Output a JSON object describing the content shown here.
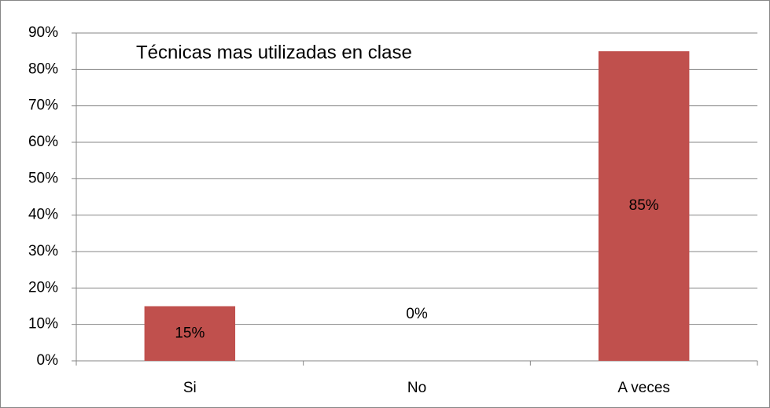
{
  "chart_data": {
    "type": "bar",
    "title": "Técnicas mas utilizadas en clase",
    "categories": [
      "Si",
      "No",
      "A veces"
    ],
    "values": [
      15,
      0,
      85
    ],
    "value_labels": [
      "15%",
      "0%",
      "85%"
    ],
    "color": "#c0504d",
    "ylim": [
      0,
      90
    ],
    "yticks": [
      {
        "value": 0,
        "label": "0%"
      },
      {
        "value": 10,
        "label": "10%"
      },
      {
        "value": 20,
        "label": "20%"
      },
      {
        "value": 30,
        "label": "30%"
      },
      {
        "value": 40,
        "label": "40%"
      },
      {
        "value": 50,
        "label": "50%"
      },
      {
        "value": 60,
        "label": "60%"
      },
      {
        "value": 70,
        "label": "70%"
      },
      {
        "value": 80,
        "label": "80%"
      },
      {
        "value": 90,
        "label": "90%"
      }
    ],
    "grid": true
  }
}
